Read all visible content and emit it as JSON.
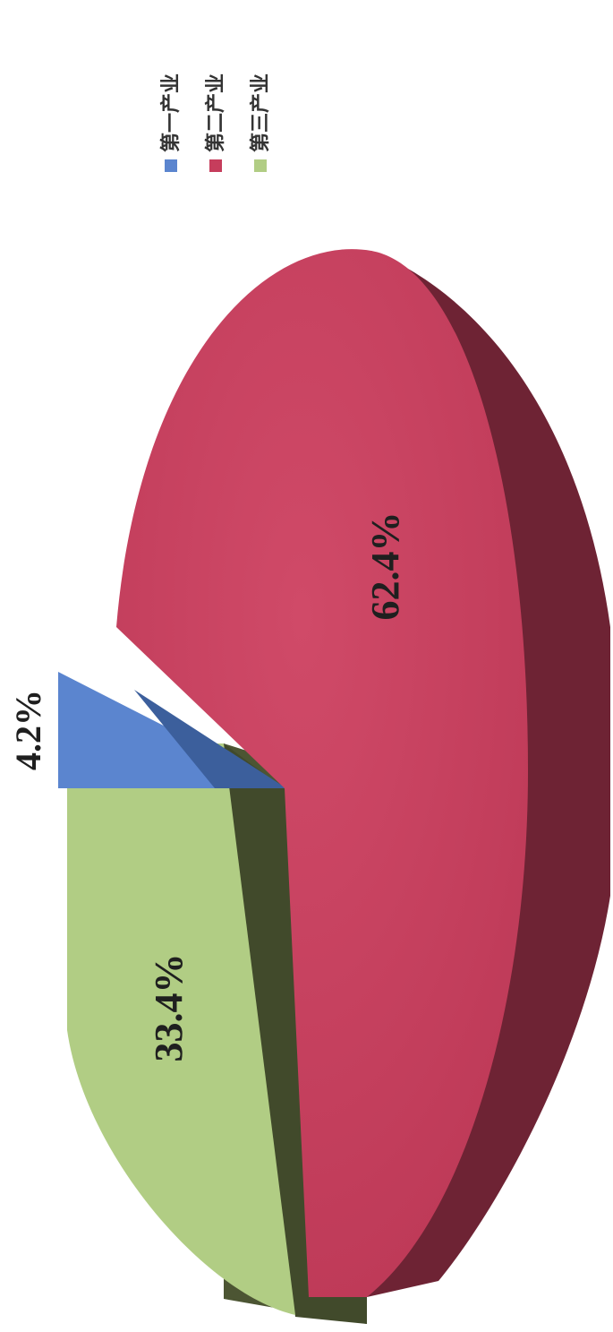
{
  "chart_data": {
    "type": "pie",
    "categories": [
      "第一产业",
      "第二产业",
      "第三产业"
    ],
    "values": [
      4.2,
      62.4,
      33.4
    ],
    "data_labels": [
      "4.2%",
      "62.4%",
      "33.4%"
    ],
    "colors": {
      "top": [
        "#5b85cf",
        "#c63d5c",
        "#b1cd84"
      ],
      "side": [
        "#3c5f9c",
        "#6e2334",
        "#4c5533"
      ]
    },
    "exploded": true,
    "three_d": true,
    "legend_position": "top-right"
  }
}
